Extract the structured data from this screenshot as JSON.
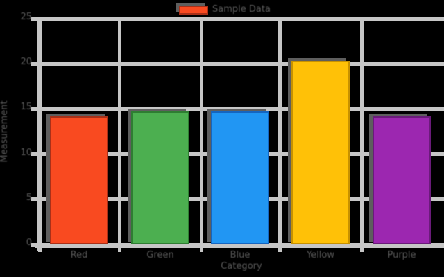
{
  "chart_data": {
    "type": "bar",
    "categories": [
      "Red",
      "Green",
      "Blue",
      "Yellow",
      "Purple"
    ],
    "values": [
      14.2,
      14.7,
      14.7,
      20.3,
      14.2
    ],
    "bar_colors": [
      "#f94a20",
      "#4caf50",
      "#2196f3",
      "#ffc107",
      "#9c27b0"
    ],
    "bar_edge_colors": [
      "#a93018",
      "#2e7d32",
      "#1565c0",
      "#c79100",
      "#6a1b7a"
    ],
    "title": "",
    "xlabel": "Category",
    "ylabel": "Measurement",
    "ylim": [
      0,
      25
    ],
    "yticks": [
      0,
      5,
      10,
      15,
      20,
      25
    ],
    "grid": true,
    "legend": {
      "label": "Sample Data",
      "swatch_color": "#f94a20",
      "position": "top-center"
    },
    "colors": {
      "grid": "#c6c6c6",
      "text": "#595959",
      "background": "#000000",
      "bar_shadow": "#5e5e5e"
    }
  }
}
